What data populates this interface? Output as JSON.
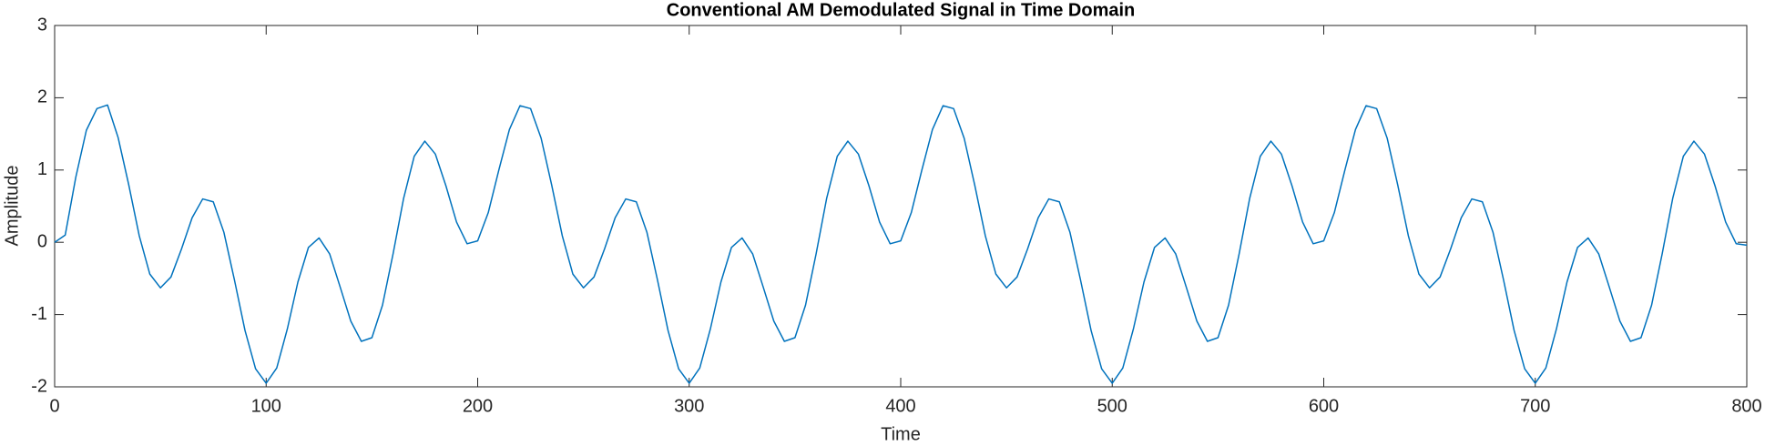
{
  "chart_data": {
    "type": "line",
    "title": "Conventional AM Demodulated Signal in Time Domain",
    "x_label": "Time",
    "y_label": "Amplitude",
    "xlim": [
      0,
      800
    ],
    "xticks": [
      0,
      100,
      200,
      300,
      400,
      500,
      600,
      700,
      800
    ],
    "ylim": [
      -2,
      3
    ],
    "yticks": [
      -2,
      -1,
      0,
      1,
      2,
      3
    ],
    "grid": false,
    "series": [
      {
        "color": "#0072bd",
        "x": [
          0,
          5,
          10,
          15,
          20,
          25,
          30,
          35,
          40,
          45,
          50,
          55,
          60,
          65,
          70,
          75,
          80,
          85,
          90,
          95,
          100,
          105,
          110,
          115,
          120,
          125,
          130,
          135,
          140,
          145,
          150,
          155,
          160,
          165,
          170,
          175,
          180,
          185,
          190,
          195,
          200,
          205,
          210,
          215,
          220,
          225,
          230,
          235,
          240,
          245,
          250,
          255,
          260,
          265,
          270,
          275,
          280,
          285,
          290,
          295,
          300,
          305,
          310,
          315,
          320,
          325,
          330,
          335,
          340,
          345,
          350,
          355,
          360,
          365,
          370,
          375,
          380,
          385,
          390,
          395,
          400,
          405,
          410,
          415,
          420,
          425,
          430,
          435,
          440,
          445,
          450,
          455,
          460,
          465,
          470,
          475,
          480,
          485,
          490,
          495,
          500,
          505,
          510,
          515,
          520,
          525,
          530,
          535,
          540,
          545,
          550,
          555,
          560,
          565,
          570,
          575,
          580,
          585,
          590,
          595,
          600,
          605,
          610,
          615,
          620,
          625,
          630,
          635,
          640,
          645,
          650,
          655,
          660,
          665,
          670,
          675,
          680,
          685,
          690,
          695,
          700,
          705,
          710,
          715,
          720,
          725,
          730,
          735,
          740,
          745,
          750,
          755,
          760,
          765,
          770,
          775,
          780,
          785,
          790,
          795,
          800
        ],
        "values": [
          0,
          0.1,
          0.9,
          1.55,
          1.85,
          1.9,
          1.45,
          0.8,
          0.09,
          -0.44,
          -0.63,
          -0.48,
          -0.09,
          0.34,
          0.6,
          0.56,
          0.14,
          -0.52,
          -1.22,
          -1.75,
          -1.95,
          -1.74,
          -1.2,
          -0.55,
          -0.07,
          0.06,
          -0.16,
          -0.62,
          -1.09,
          -1.37,
          -1.32,
          -0.87,
          -0.16,
          0.61,
          1.19,
          1.4,
          1.22,
          0.78,
          0.28,
          -0.02,
          0.02,
          0.41,
          1,
          1.56,
          1.89,
          1.85,
          1.44,
          0.79,
          0.09,
          -0.44,
          -0.63,
          -0.48,
          -0.09,
          0.34,
          0.6,
          0.56,
          0.14,
          -0.52,
          -1.22,
          -1.75,
          -1.95,
          -1.74,
          -1.2,
          -0.55,
          -0.07,
          0.06,
          -0.16,
          -0.62,
          -1.09,
          -1.37,
          -1.32,
          -0.87,
          -0.16,
          0.61,
          1.19,
          1.4,
          1.22,
          0.78,
          0.28,
          -0.02,
          0.02,
          0.41,
          1,
          1.56,
          1.89,
          1.85,
          1.44,
          0.79,
          0.09,
          -0.44,
          -0.63,
          -0.48,
          -0.09,
          0.34,
          0.6,
          0.56,
          0.14,
          -0.52,
          -1.22,
          -1.75,
          -1.95,
          -1.74,
          -1.2,
          -0.55,
          -0.07,
          0.06,
          -0.16,
          -0.62,
          -1.09,
          -1.37,
          -1.32,
          -0.87,
          -0.16,
          0.61,
          1.19,
          1.4,
          1.22,
          0.78,
          0.28,
          -0.02,
          0.02,
          0.41,
          1,
          1.56,
          1.89,
          1.85,
          1.44,
          0.79,
          0.09,
          -0.44,
          -0.63,
          -0.48,
          -0.09,
          0.34,
          0.6,
          0.56,
          0.14,
          -0.52,
          -1.22,
          -1.75,
          -1.95,
          -1.74,
          -1.2,
          -0.55,
          -0.07,
          0.06,
          -0.16,
          -0.62,
          -1.09,
          -1.37,
          -1.32,
          -0.87,
          -0.16,
          0.61,
          1.19,
          1.4,
          1.22,
          0.78,
          0.28,
          -0.02,
          -0.04
        ]
      }
    ]
  }
}
